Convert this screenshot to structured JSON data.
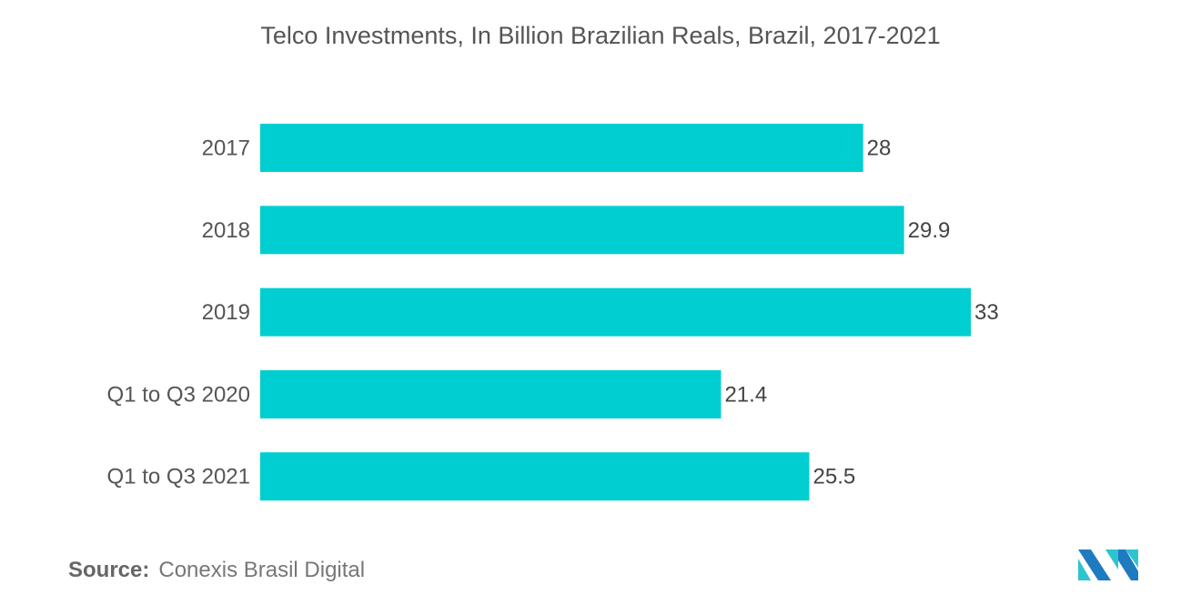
{
  "chart_data": {
    "type": "bar",
    "orientation": "horizontal",
    "title": "Telco Investments, In Billion Brazilian Reals, Brazil, 2017-2021",
    "categories": [
      "2017",
      "2018",
      "2019",
      "Q1 to Q3 2020",
      "Q1 to Q3 2021"
    ],
    "values": [
      28,
      29.9,
      33,
      21.4,
      25.5
    ],
    "value_labels": [
      "28",
      "29.9",
      "33",
      "21.4",
      "25.5"
    ],
    "xlabel": "",
    "ylabel": "",
    "xlim": [
      0,
      33
    ],
    "grid": false,
    "bar_color": "#00CED1"
  },
  "source": {
    "label": "Source:",
    "text": "Conexis Brasil Digital"
  },
  "logo": {
    "colors": [
      "#1F7BC0",
      "#2EC4CF"
    ]
  }
}
